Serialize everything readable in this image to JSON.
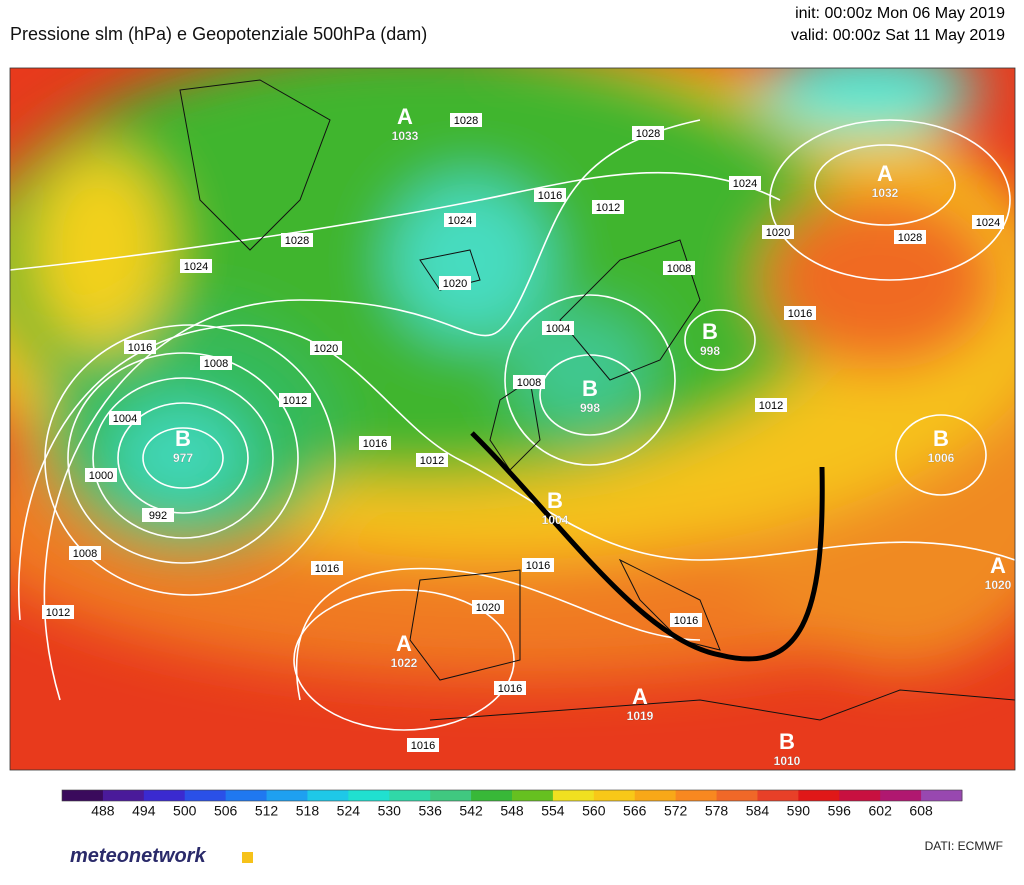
{
  "header": {
    "title": "Pressione slm (hPa) e Geopotenziale 500hPa (dam)",
    "init": "init: 00:00z Mon 06 May 2019",
    "valid": "valid: 00:00z Sat 11 May 2019"
  },
  "pressure_centers": [
    {
      "letter": "A",
      "value": 1033
    },
    {
      "letter": "A",
      "value": 1032
    },
    {
      "letter": "B",
      "value": 998
    },
    {
      "letter": "B",
      "value": 977
    },
    {
      "letter": "B",
      "value": 998
    },
    {
      "letter": "B",
      "value": 1006
    },
    {
      "letter": "B",
      "value": 1004
    },
    {
      "letter": "A",
      "value": 1020
    },
    {
      "letter": "A",
      "value": 1022
    },
    {
      "letter": "A",
      "value": 1019
    },
    {
      "letter": "B",
      "value": 1010
    }
  ],
  "isobar_labels": [
    1028,
    1028,
    1024,
    1016,
    1012,
    1024,
    1028,
    1024,
    1020,
    1028,
    1024,
    1020,
    1008,
    1016,
    1004,
    1016,
    1008,
    1020,
    1012,
    1004,
    1008,
    1016,
    1012,
    992,
    1000,
    1012,
    1008,
    1016,
    1016,
    1012,
    1020,
    1016,
    1016,
    1016
  ],
  "colorbar": {
    "labels": [
      488,
      494,
      500,
      506,
      512,
      518,
      524,
      530,
      536,
      542,
      548,
      554,
      560,
      566,
      572,
      578,
      584,
      590,
      596,
      602,
      608
    ],
    "colors": [
      "#3a0a5c",
      "#4a1a9a",
      "#3a2ad0",
      "#2a50e8",
      "#1f78f0",
      "#1ea0f0",
      "#1ec8e8",
      "#20e0d0",
      "#30d8a8",
      "#40c880",
      "#38b838",
      "#66c020",
      "#f0e020",
      "#f8c818",
      "#f8a818",
      "#f88820",
      "#f06828",
      "#e84028",
      "#e01818",
      "#c81040",
      "#b01870",
      "#9848b0"
    ]
  },
  "footer": {
    "logo": "meteonetwork",
    "source": "DATI:  ECMWF"
  }
}
